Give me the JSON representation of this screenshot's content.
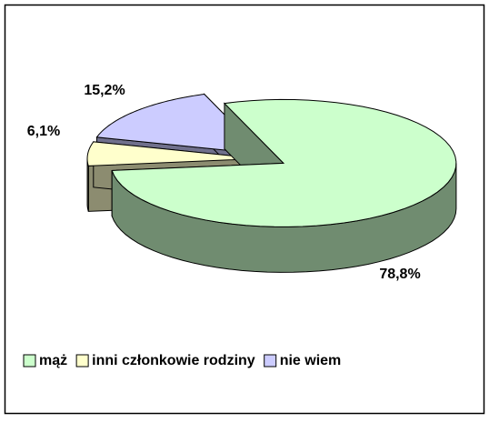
{
  "chart_data": {
    "type": "pie",
    "categories": [
      "mąż",
      "inni członkowie rodziny",
      "nie wiem"
    ],
    "values": [
      78.8,
      6.1,
      15.2
    ],
    "value_labels": [
      "78,8%",
      "6,1%",
      "15,2%"
    ],
    "colors": [
      "#ccffcc",
      "#ffffcc",
      "#ccccff"
    ],
    "legend": "bottom"
  }
}
